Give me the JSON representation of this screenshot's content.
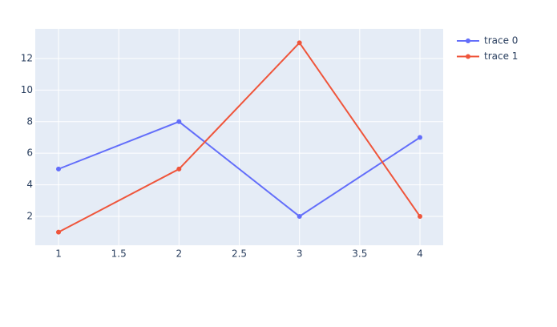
{
  "chart_data": {
    "type": "line",
    "x": [
      1,
      2,
      3,
      4
    ],
    "series": [
      {
        "name": "trace 0",
        "color": "#636efa",
        "values": [
          5,
          8,
          2,
          7
        ]
      },
      {
        "name": "trace 1",
        "color": "#ef553b",
        "values": [
          1,
          5,
          13,
          2
        ]
      }
    ],
    "xlim": [
      0.807,
      4.193
    ],
    "xticks": [
      1,
      1.5,
      2,
      2.5,
      3,
      3.5,
      4
    ],
    "ylim": [
      0.17,
      13.88
    ],
    "yticks": [
      2,
      4,
      6,
      8,
      10,
      12
    ],
    "grid": true,
    "legend": "top-right",
    "markers": true
  }
}
